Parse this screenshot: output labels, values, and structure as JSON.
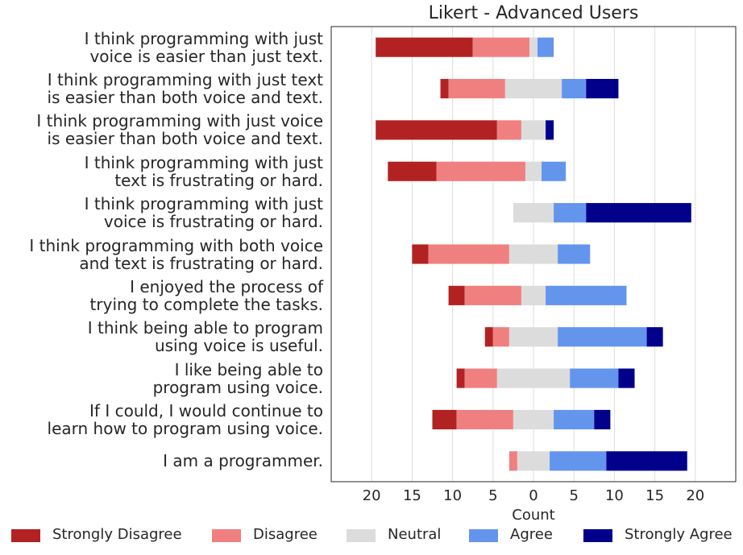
{
  "chart_data": {
    "type": "bar",
    "subtype": "diverging-stacked-horizontal",
    "title": "Likert - Advanced Users",
    "xlabel": "Count",
    "xlim": [
      -25,
      25
    ],
    "x_ticks": [
      -20,
      -15,
      -10,
      -5,
      0,
      5,
      10,
      15,
      20
    ],
    "x_tick_labels": [
      "20",
      "15",
      "10",
      "5",
      "0",
      "5",
      "10",
      "15",
      "20"
    ],
    "grid": "vertical",
    "legend_position": "bottom",
    "series": [
      {
        "name": "Strongly Disagree",
        "color": "#b22222"
      },
      {
        "name": "Disagree",
        "color": "#f08080"
      },
      {
        "name": "Neutral",
        "color": "#dcdcdc"
      },
      {
        "name": "Agree",
        "color": "#6495ed"
      },
      {
        "name": "Strongly Agree",
        "color": "#00008b"
      }
    ],
    "rows": [
      {
        "label": "I think programming with just\nvoice is easier than just text.",
        "values": [
          12,
          7,
          1,
          2,
          0
        ]
      },
      {
        "label": "I think programming with just text\nis easier than both voice and text.",
        "values": [
          1,
          7,
          7,
          3,
          4
        ]
      },
      {
        "label": "I think programming with just voice\nis easier than both voice and text.",
        "values": [
          15,
          3,
          3,
          0,
          1
        ]
      },
      {
        "label": "I think programming with just\ntext is frustrating or hard.",
        "values": [
          6,
          11,
          2,
          3,
          0
        ]
      },
      {
        "label": "I think programming with just\nvoice is frustrating or hard.",
        "values": [
          0,
          0,
          5,
          4,
          13
        ]
      },
      {
        "label": "I think programming with both voice\nand text is frustrating or hard.",
        "values": [
          2,
          10,
          6,
          4,
          0
        ]
      },
      {
        "label": "I enjoyed the process of\ntrying to complete the tasks.",
        "values": [
          2,
          7,
          3,
          10,
          0
        ]
      },
      {
        "label": "I think being able to program\nusing voice is useful.",
        "values": [
          1,
          2,
          6,
          11,
          2
        ]
      },
      {
        "label": "I like being able to\nprogram using voice.",
        "values": [
          1,
          4,
          9,
          6,
          2
        ]
      },
      {
        "label": "If I could, I would continue to\nlearn how to program using voice.",
        "values": [
          3,
          7,
          5,
          5,
          2
        ]
      },
      {
        "label": "I am a programmer.",
        "values": [
          0,
          1,
          4,
          7,
          10
        ]
      }
    ]
  }
}
